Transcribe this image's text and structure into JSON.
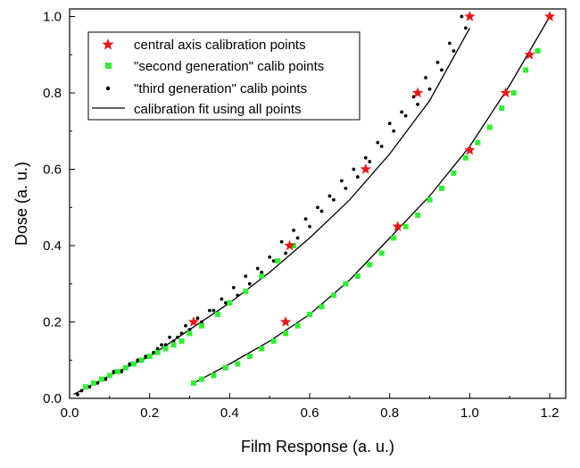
{
  "chart_data": {
    "type": "scatter",
    "title": "",
    "xlabel": "Film Response (a. u.)",
    "ylabel": "Dose (a. u.)",
    "xlim": [
      0.0,
      1.24
    ],
    "ylim": [
      0.0,
      1.02
    ],
    "x_ticks": [
      "0.0",
      "0.2",
      "0.4",
      "0.6",
      "0.8",
      "1.0",
      "1.2"
    ],
    "y_ticks": [
      "0.0",
      "0.2",
      "0.4",
      "0.6",
      "0.8",
      "1.0"
    ],
    "grid": false,
    "legend_position": "top-left",
    "colors": {
      "star": "#e8161b",
      "square": "#33ee33",
      "dot": "#000000",
      "line": "#000000"
    },
    "series": [
      {
        "name": "central axis calibration points",
        "marker": "star",
        "x": [
          0.31,
          0.55,
          0.74,
          0.87,
          1.0,
          0.54,
          0.82,
          1.0,
          1.09,
          1.15,
          1.2
        ],
        "y": [
          0.2,
          0.4,
          0.6,
          0.8,
          1.0,
          0.2,
          0.45,
          0.65,
          0.8,
          0.9,
          1.0
        ]
      },
      {
        "name": "\"second generation\" calib points",
        "marker": "square",
        "x": [
          0.04,
          0.06,
          0.08,
          0.1,
          0.12,
          0.14,
          0.16,
          0.18,
          0.2,
          0.22,
          0.24,
          0.26,
          0.28,
          0.3,
          0.33,
          0.37,
          0.4,
          0.44,
          0.48,
          0.52,
          0.56,
          0.31,
          0.33,
          0.36,
          0.39,
          0.42,
          0.45,
          0.48,
          0.51,
          0.54,
          0.57,
          0.6,
          0.63,
          0.66,
          0.69,
          0.72,
          0.75,
          0.78,
          0.81,
          0.84,
          0.87,
          0.9,
          0.93,
          0.96,
          0.99,
          1.02,
          1.05,
          1.08,
          1.11,
          1.14,
          1.17
        ],
        "y": [
          0.03,
          0.04,
          0.05,
          0.06,
          0.07,
          0.08,
          0.09,
          0.1,
          0.11,
          0.12,
          0.13,
          0.14,
          0.15,
          0.17,
          0.19,
          0.22,
          0.25,
          0.28,
          0.32,
          0.36,
          0.4,
          0.04,
          0.05,
          0.06,
          0.08,
          0.09,
          0.11,
          0.13,
          0.15,
          0.17,
          0.19,
          0.22,
          0.24,
          0.27,
          0.3,
          0.32,
          0.35,
          0.38,
          0.42,
          0.45,
          0.48,
          0.52,
          0.55,
          0.59,
          0.63,
          0.67,
          0.71,
          0.76,
          0.8,
          0.86,
          0.91
        ]
      },
      {
        "name": "\"third generation\" calib points",
        "marker": "dot",
        "x": [
          0.02,
          0.03,
          0.05,
          0.07,
          0.09,
          0.1,
          0.12,
          0.14,
          0.16,
          0.18,
          0.2,
          0.22,
          0.24,
          0.26,
          0.28,
          0.3,
          0.33,
          0.36,
          0.39,
          0.42,
          0.45,
          0.48,
          0.51,
          0.54,
          0.57,
          0.6,
          0.63,
          0.66,
          0.69,
          0.72,
          0.75,
          0.78,
          0.81,
          0.84,
          0.87,
          0.9,
          0.93,
          0.96,
          0.99,
          0.06,
          0.08,
          0.11,
          0.13,
          0.15,
          0.17,
          0.19,
          0.21,
          0.23,
          0.25,
          0.27,
          0.29,
          0.32,
          0.35,
          0.38,
          0.41,
          0.44,
          0.47,
          0.5,
          0.53,
          0.56,
          0.59,
          0.62,
          0.65,
          0.68,
          0.71,
          0.74,
          0.77,
          0.8,
          0.83,
          0.86,
          0.89,
          0.92,
          0.95,
          0.98
        ],
        "y": [
          0.01,
          0.02,
          0.03,
          0.04,
          0.05,
          0.06,
          0.07,
          0.08,
          0.09,
          0.1,
          0.11,
          0.13,
          0.14,
          0.15,
          0.17,
          0.18,
          0.2,
          0.23,
          0.25,
          0.27,
          0.3,
          0.33,
          0.36,
          0.38,
          0.42,
          0.45,
          0.49,
          0.52,
          0.55,
          0.58,
          0.62,
          0.66,
          0.7,
          0.74,
          0.77,
          0.81,
          0.86,
          0.91,
          0.97,
          0.04,
          0.05,
          0.07,
          0.07,
          0.09,
          0.1,
          0.11,
          0.12,
          0.14,
          0.16,
          0.16,
          0.19,
          0.21,
          0.23,
          0.26,
          0.29,
          0.32,
          0.34,
          0.37,
          0.41,
          0.44,
          0.47,
          0.5,
          0.53,
          0.57,
          0.6,
          0.63,
          0.67,
          0.72,
          0.75,
          0.79,
          0.84,
          0.88,
          0.93,
          1.0
        ]
      },
      {
        "name": "calibration fit using all points",
        "marker": "line",
        "curves": [
          {
            "x": [
              0.01,
              0.1,
              0.2,
              0.3,
              0.4,
              0.5,
              0.6,
              0.7,
              0.8,
              0.9,
              1.0
            ],
            "y": [
              0.01,
              0.06,
              0.11,
              0.18,
              0.25,
              0.33,
              0.42,
              0.52,
              0.64,
              0.78,
              0.97
            ]
          },
          {
            "x": [
              0.31,
              0.4,
              0.5,
              0.6,
              0.7,
              0.8,
              0.9,
              1.0,
              1.1,
              1.2
            ],
            "y": [
              0.04,
              0.09,
              0.15,
              0.22,
              0.31,
              0.42,
              0.53,
              0.66,
              0.82,
              1.0
            ]
          }
        ]
      }
    ]
  }
}
